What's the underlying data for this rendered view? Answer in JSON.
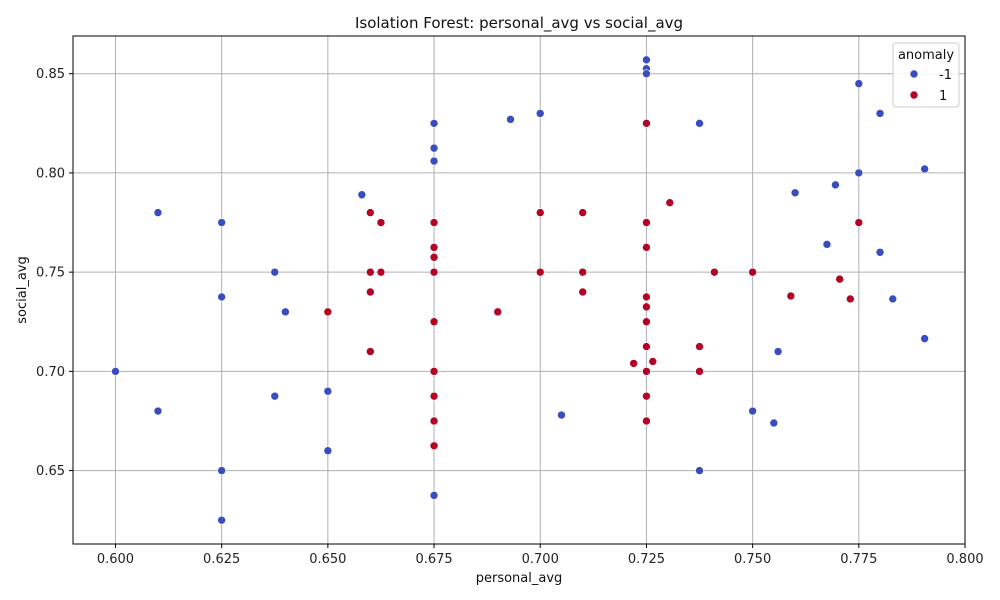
{
  "chart_data": {
    "type": "scatter",
    "title": "Isolation Forest: personal_avg vs social_avg",
    "xlabel": "personal_avg",
    "ylabel": "social_avg",
    "xlim": [
      0.59,
      0.8
    ],
    "ylim": [
      0.613,
      0.869
    ],
    "xticks": [
      0.6,
      0.625,
      0.65,
      0.675,
      0.7,
      0.725,
      0.75,
      0.775,
      0.8
    ],
    "xtick_labels": [
      "0.600",
      "0.625",
      "0.650",
      "0.675",
      "0.700",
      "0.725",
      "0.750",
      "0.775",
      "0.800"
    ],
    "yticks": [
      0.65,
      0.7,
      0.75,
      0.8,
      0.85
    ],
    "ytick_labels": [
      "0.65",
      "0.70",
      "0.75",
      "0.80",
      "0.85"
    ],
    "grid": true,
    "legend": {
      "title": "anomaly",
      "position": "top-right"
    },
    "series": [
      {
        "name": "-1",
        "color": "#3b4cc0",
        "points": [
          [
            0.6,
            0.7
          ],
          [
            0.61,
            0.78
          ],
          [
            0.61,
            0.68
          ],
          [
            0.625,
            0.775
          ],
          [
            0.625,
            0.7375
          ],
          [
            0.625,
            0.65
          ],
          [
            0.625,
            0.625
          ],
          [
            0.6375,
            0.75
          ],
          [
            0.6375,
            0.6875
          ],
          [
            0.64,
            0.73
          ],
          [
            0.65,
            0.69
          ],
          [
            0.65,
            0.66
          ],
          [
            0.658,
            0.789
          ],
          [
            0.675,
            0.825
          ],
          [
            0.675,
            0.8125
          ],
          [
            0.675,
            0.806
          ],
          [
            0.675,
            0.6375
          ],
          [
            0.693,
            0.827
          ],
          [
            0.7,
            0.83
          ],
          [
            0.705,
            0.678
          ],
          [
            0.725,
            0.857
          ],
          [
            0.725,
            0.8525
          ],
          [
            0.725,
            0.85
          ],
          [
            0.7375,
            0.825
          ],
          [
            0.7375,
            0.65
          ],
          [
            0.75,
            0.68
          ],
          [
            0.755,
            0.674
          ],
          [
            0.756,
            0.71
          ],
          [
            0.76,
            0.79
          ],
          [
            0.7675,
            0.764
          ],
          [
            0.7695,
            0.794
          ],
          [
            0.775,
            0.845
          ],
          [
            0.775,
            0.8
          ],
          [
            0.78,
            0.83
          ],
          [
            0.78,
            0.76
          ],
          [
            0.783,
            0.7365
          ],
          [
            0.7905,
            0.802
          ],
          [
            0.7905,
            0.7165
          ]
        ]
      },
      {
        "name": "1",
        "color": "#b40426",
        "points": [
          [
            0.65,
            0.73
          ],
          [
            0.66,
            0.78
          ],
          [
            0.66,
            0.75
          ],
          [
            0.66,
            0.74
          ],
          [
            0.66,
            0.71
          ],
          [
            0.6625,
            0.775
          ],
          [
            0.6625,
            0.75
          ],
          [
            0.675,
            0.775
          ],
          [
            0.675,
            0.7625
          ],
          [
            0.675,
            0.7575
          ],
          [
            0.675,
            0.75
          ],
          [
            0.675,
            0.725
          ],
          [
            0.675,
            0.7
          ],
          [
            0.675,
            0.6875
          ],
          [
            0.675,
            0.675
          ],
          [
            0.675,
            0.6625
          ],
          [
            0.69,
            0.73
          ],
          [
            0.7,
            0.78
          ],
          [
            0.7,
            0.75
          ],
          [
            0.71,
            0.78
          ],
          [
            0.71,
            0.75
          ],
          [
            0.71,
            0.74
          ],
          [
            0.722,
            0.704
          ],
          [
            0.725,
            0.825
          ],
          [
            0.725,
            0.775
          ],
          [
            0.725,
            0.7625
          ],
          [
            0.725,
            0.7375
          ],
          [
            0.725,
            0.7325
          ],
          [
            0.725,
            0.725
          ],
          [
            0.725,
            0.7125
          ],
          [
            0.725,
            0.7
          ],
          [
            0.7265,
            0.705
          ],
          [
            0.725,
            0.6875
          ],
          [
            0.725,
            0.675
          ],
          [
            0.7305,
            0.785
          ],
          [
            0.7375,
            0.7125
          ],
          [
            0.7375,
            0.7
          ],
          [
            0.741,
            0.75
          ],
          [
            0.75,
            0.75
          ],
          [
            0.759,
            0.738
          ],
          [
            0.7705,
            0.7465
          ],
          [
            0.773,
            0.7365
          ],
          [
            0.775,
            0.775
          ]
        ]
      }
    ]
  }
}
